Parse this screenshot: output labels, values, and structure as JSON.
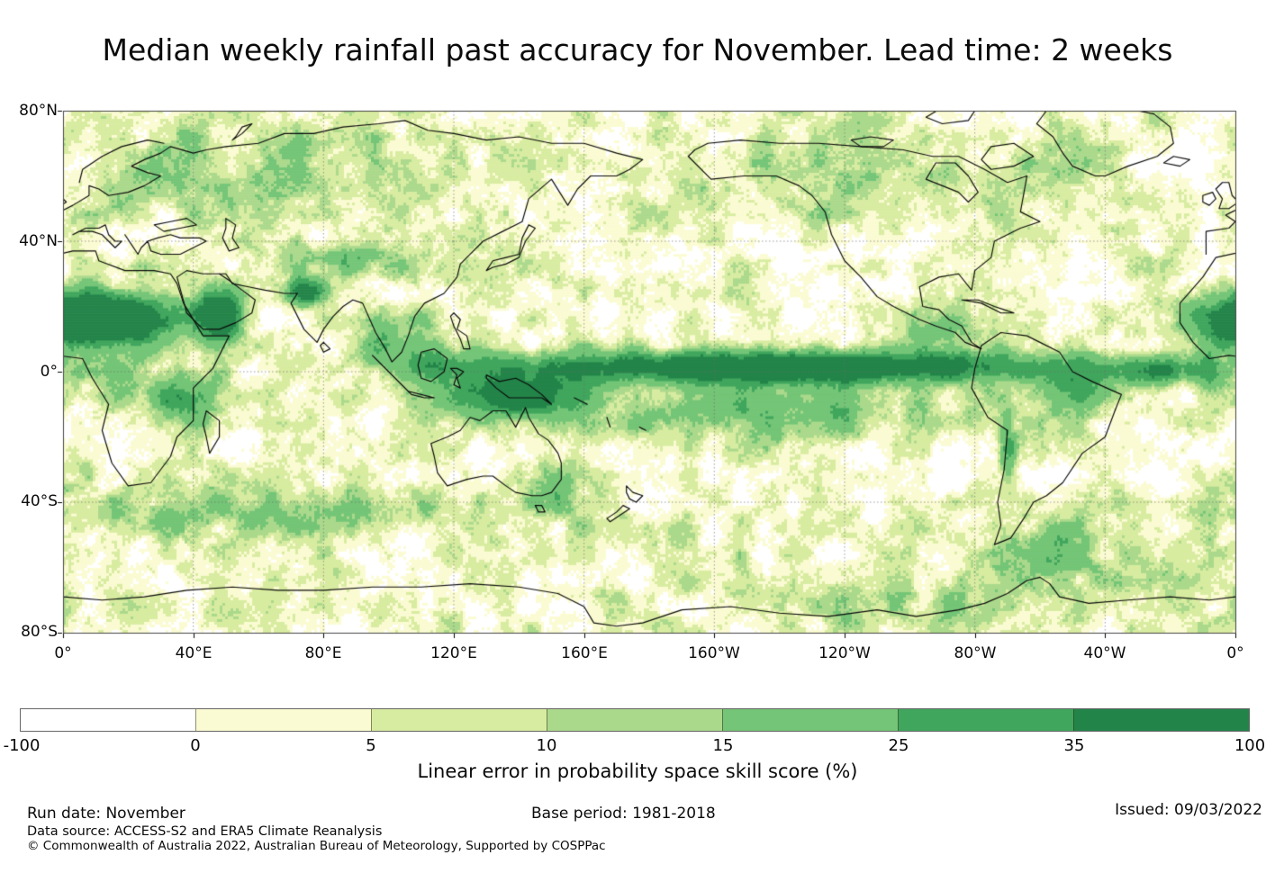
{
  "title": "Median weekly rainfall past accuracy for November. Lead time: 2 weeks",
  "map": {
    "lat_ticks": [
      "80°N",
      "40°N",
      "0°",
      "40°S",
      "80°S"
    ],
    "lon_ticks": [
      "0°",
      "40°E",
      "80°E",
      "120°E",
      "160°E",
      "160°W",
      "120°W",
      "80°W",
      "40°W",
      "0°"
    ]
  },
  "colorbar": {
    "label": "Linear error in probability space skill score (%)",
    "ticks": [
      "-100",
      "0",
      "5",
      "10",
      "15",
      "25",
      "35",
      "100"
    ],
    "colors": [
      "#ffffff",
      "#fbfbd3",
      "#d8eca1",
      "#abd98c",
      "#74c577",
      "#40a65d",
      "#238449"
    ]
  },
  "footer": {
    "run_date": "Run date: November",
    "base_period": "Base period: 1981-2018",
    "issued": "Issued: 09/03/2022",
    "data_source": "Data source: ACCESS-S2 and ERA5 Climate Reanalysis",
    "copyright": "© Commonwealth of Australia 2022, Australian Bureau of Meteorology, Supported by COSPPac"
  }
}
